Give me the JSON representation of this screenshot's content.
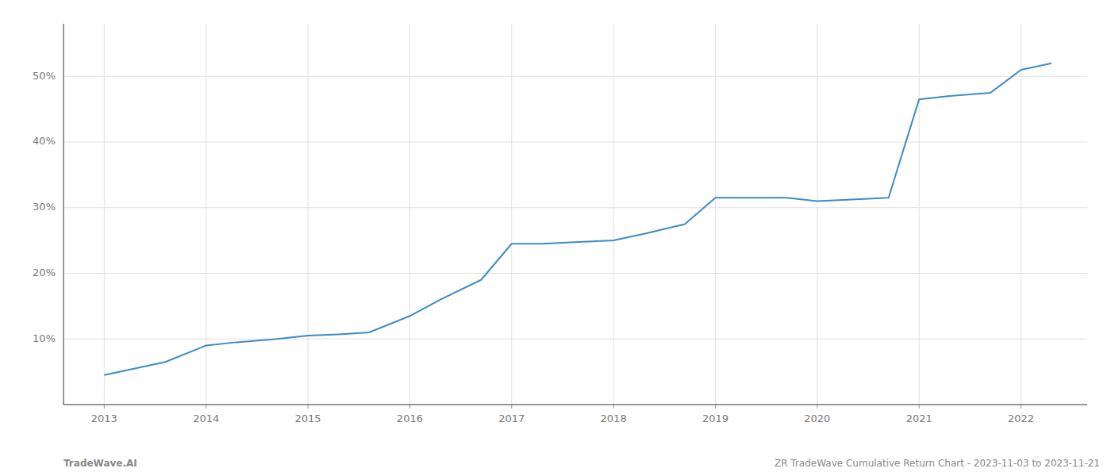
{
  "chart_data": {
    "type": "line",
    "x": [
      2013,
      2013.3,
      2013.6,
      2014,
      2014.3,
      2014.7,
      2015,
      2015.3,
      2015.6,
      2016,
      2016.3,
      2016.7,
      2017,
      2017.3,
      2017.7,
      2018,
      2018.3,
      2018.7,
      2019,
      2019.3,
      2019.7,
      2020,
      2020.3,
      2020.7,
      2021,
      2021.3,
      2021.7,
      2022,
      2022.3
    ],
    "values": [
      4.5,
      5.5,
      6.5,
      9.0,
      9.5,
      10.0,
      10.5,
      10.7,
      11.0,
      13.5,
      16.0,
      19.0,
      24.5,
      24.5,
      24.8,
      25.0,
      26.0,
      27.5,
      31.5,
      31.5,
      31.5,
      31.0,
      31.2,
      31.5,
      46.5,
      47.0,
      47.5,
      51.0,
      52.0
    ],
    "color": "#3d8cc4",
    "xlim": [
      2012.6,
      2022.65
    ],
    "xticks": [
      2013,
      2014,
      2015,
      2016,
      2017,
      2018,
      2019,
      2020,
      2021,
      2022
    ],
    "ylim": [
      0,
      58
    ],
    "yticks": [
      {
        "value": 10,
        "label": "10%"
      },
      {
        "value": 20,
        "label": "20%"
      },
      {
        "value": 30,
        "label": "30%"
      },
      {
        "value": 40,
        "label": "40%"
      },
      {
        "value": 50,
        "label": "50%"
      }
    ],
    "grid": true,
    "annotations": [
      "TradeWave.AI",
      "ZR TradeWave Cumulative Return Chart - 2023-11-03 to 2023-11-21"
    ]
  }
}
